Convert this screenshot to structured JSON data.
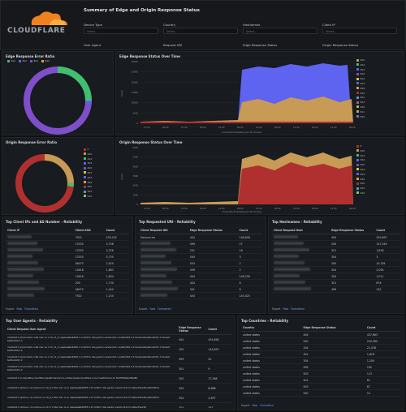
{
  "brand": {
    "name": "CLOUDFLARE"
  },
  "header": {
    "title": "Summary of Edge and Origin Response Status"
  },
  "filters": [
    {
      "label": "Device Type",
      "placeholder": "Select..."
    },
    {
      "label": "Country",
      "placeholder": "Select..."
    },
    {
      "label": "Hostnames",
      "placeholder": "Select..."
    },
    {
      "label": "Client IP",
      "placeholder": "Select..."
    },
    {
      "label": "User Agent",
      "placeholder": ""
    },
    {
      "label": "Request URI",
      "placeholder": ""
    },
    {
      "label": "Edge Response Status",
      "placeholder": ""
    },
    {
      "label": "Origin Response Status",
      "placeholder": ""
    }
  ],
  "edge_ratio": {
    "title": "Edge Response Error Ratio",
    "legend": [
      "2xx",
      "3xx",
      "4xx",
      "5xx"
    ]
  },
  "edge_time": {
    "title": "Edge Response Status Over Time",
    "xlabel": "coordinate timestamp per 30 minutes"
  },
  "origin_ratio": {
    "title": "Origin Response Error Ratio",
    "legend": [
      "0",
      "200",
      "204",
      "304",
      "400",
      "403",
      "404",
      "499",
      "500",
      "502",
      "520"
    ]
  },
  "origin_time": {
    "title": "Origin Response Status Over Time",
    "xlabel": "coordinate timestamp per 30 minutes"
  },
  "edge_status_legend": [
    "200",
    "204",
    "304",
    "400",
    "403",
    "404",
    "499",
    "500",
    "502",
    "503",
    "520",
    "521",
    "525"
  ],
  "origin_status_legend": [
    "0",
    "200",
    "204",
    "304",
    "400",
    "403",
    "404",
    "499",
    "500",
    "502",
    "520"
  ],
  "colors": {
    "green": "#3fbf6f",
    "blue": "#5e63f0",
    "purple": "#7f4fc9",
    "orange": "#e89b3c",
    "red": "#b0302f",
    "tan": "#c79a55",
    "yellow": "#d2c34a"
  },
  "top_ip": {
    "title": "Top Client IPs and AS Number - Reliability",
    "columns": [
      "Client IP",
      "Client ASN",
      "Count"
    ],
    "rows": [
      [
        "",
        "7922",
        "576,202"
      ],
      [
        "",
        "13335",
        "5,758"
      ],
      [
        "",
        "13335",
        "5,756"
      ],
      [
        "",
        "13335",
        "5,755"
      ],
      [
        "",
        "46475",
        "2,020"
      ],
      [
        "",
        "14618",
        "1,863"
      ],
      [
        "",
        "14618",
        "1,834"
      ],
      [
        "",
        "209",
        "1,730"
      ],
      [
        "",
        "46475",
        "1,444"
      ],
      [
        "",
        "7922",
        "1,154"
      ]
    ]
  },
  "top_uri": {
    "title": "Top Requested URI - Reliability",
    "columns": [
      "Client Request URI",
      "Edge Response Status",
      "Count"
    ],
    "rows": [
      [
        "/favicon.ico",
        "404",
        "148,658"
      ],
      [
        "",
        "499",
        "27"
      ],
      [
        "",
        "201",
        "16"
      ],
      [
        "",
        "500",
        "3"
      ],
      [
        "",
        "503",
        "2"
      ],
      [
        "",
        "499",
        "2"
      ],
      [
        "",
        "404",
        "148,228"
      ],
      [
        "",
        "404",
        "6"
      ],
      [
        "",
        "301",
        "6"
      ],
      [
        "",
        "404",
        "143,023"
      ]
    ]
  },
  "top_host": {
    "title": "Top Hostnames - Reliability",
    "columns": [
      "Client Request Host",
      "Edge Response Status",
      "Count"
    ],
    "rows": [
      [
        "",
        "404",
        "435,697"
      ],
      [
        "",
        "200",
        "147,549"
      ],
      [
        "",
        "301",
        "1,818"
      ],
      [
        "",
        "304",
        "3"
      ],
      [
        "",
        "200",
        "10,764"
      ],
      [
        "",
        "404",
        "2,094"
      ],
      [
        "",
        "304",
        "1,011"
      ],
      [
        "",
        "301",
        "876"
      ],
      [
        "",
        "499",
        "192"
      ]
    ]
  },
  "top_ua": {
    "title": "Top User Agents - Reliability",
    "columns": [
      "Client Request User Agent",
      "Edge Response Status",
      "Count"
    ],
    "rows": [
      [
        "mozilla/5.0 (macintosh; intel mac os x 10_11_1) applewebkit/601.2.4 (khtml, like gecko) version/9.0.1 safari/601.2.4 facebookexternalhit/1.1 facebot twitterbot/1.0",
        "404",
        "434,658"
      ],
      [
        "mozilla/5.0 (macintosh; intel mac os x 10_11_1) applewebkit/601.2.4 (khtml, like gecko) version/9.0.1 safari/601.2.4 facebookexternalhit/1.1 facebot twitterbot/1.0",
        "200",
        "144,852"
      ],
      [
        "mozilla/5.0 (macintosh; intel mac os x 10_11_1) applewebkit/601.2.4 (khtml, like gecko) version/9.0.1 safari/601.2.4 facebookexternalhit/1.1 facebot twitterbot/1.0",
        "499",
        "20"
      ],
      [
        "mozilla/5.0 (macintosh; intel mac os x 10_11_1) applewebkit/601.2.4 (khtml, like gecko) version/9.0.1 safari/601.2.4 facebookexternalhit/1.1 facebot twitterbot/1.0",
        "301",
        "9"
      ],
      [
        "mozilla/5.0 (compatible;cloudflare-healthchecks/1.0;+https://www.cloudflare.com/; healthcheck-id: 8c67f90b6e3d6a6f)",
        "200",
        "17,268"
      ],
      [
        "mozilla/5.0 (iphone; cpu iphone os 14_6_2 like mac os x) applewebkit/605.1.15 (khtml, like gecko) version/14.0 mobile/15e148 safari/604.1",
        "200",
        "8,668"
      ],
      [
        "mozilla/5.0 (iphone; cpu iphone os 14_6_2 like mac os x) applewebkit/605.1.15 (khtml, like gecko) version/14.0 mobile/15e148 safari/604.1",
        "304",
        "2,637"
      ],
      [
        "mozilla/5.0 (iphone; cpu iphone os 14_6_2 like mac os x) applewebkit/605.1.15 (khtml, like gecko) version/14.0 mobile/15e148",
        "304",
        "267"
      ]
    ]
  },
  "top_country": {
    "title": "Top Countries - Reliability",
    "columns": [
      "Country",
      "Edge Response Status",
      "Count"
    ],
    "rows": [
      [
        "united states",
        "404",
        "437,863"
      ],
      [
        "united states",
        "200",
        "220,560"
      ],
      [
        "united states",
        "204",
        "21,538"
      ],
      [
        "united states",
        "301",
        "1,818"
      ],
      [
        "united states",
        "304",
        "1,200"
      ],
      [
        "united states",
        "499",
        "192"
      ],
      [
        "united states",
        "503",
        "113"
      ],
      [
        "united states",
        "401",
        "81"
      ],
      [
        "united states",
        "503",
        "67"
      ],
      [
        "united states",
        "500",
        "12"
      ]
    ]
  },
  "export": {
    "label": "Export",
    "csv": "Raw",
    "formatted": "Formatted"
  },
  "axis": {
    "count": "Count",
    "y_edge": [
      "0",
      "5000",
      "10000",
      "15000",
      "20000",
      "25000",
      "30000"
    ],
    "y_origin": [
      "0",
      "1000",
      "2000",
      "3000",
      "4000",
      "5000",
      "6000"
    ],
    "x_ticks": [
      "12:00",
      "00:00",
      "12:00",
      "00:00",
      "12:00",
      "00:00",
      "12:00",
      "00:00",
      "12:00",
      "00:00",
      "12:00",
      "00:00"
    ]
  }
}
